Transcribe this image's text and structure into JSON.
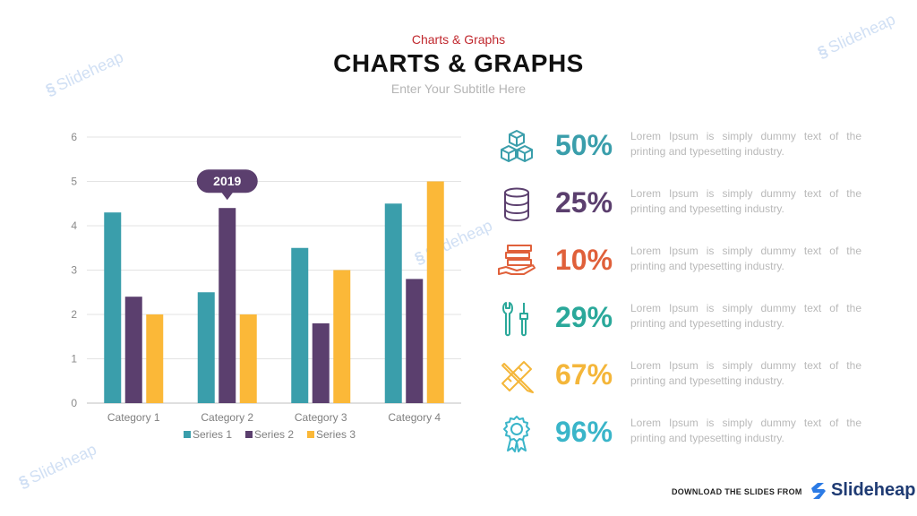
{
  "header": {
    "kicker": "Charts & Graphs",
    "title": "CHARTS & GRAPHS",
    "subtitle": "Enter Your Subtitle Here"
  },
  "chart_data": {
    "type": "bar",
    "categories": [
      "Category 1",
      "Category 2",
      "Category 3",
      "Category 4"
    ],
    "series": [
      {
        "name": "Series 1",
        "values": [
          4.3,
          2.5,
          3.5,
          4.5
        ],
        "color": "#3a9eab"
      },
      {
        "name": "Series 2",
        "values": [
          2.4,
          4.4,
          1.8,
          2.8
        ],
        "color": "#5b3f6e"
      },
      {
        "name": "Series 3",
        "values": [
          2.0,
          2.0,
          3.0,
          5.0
        ],
        "color": "#fbb838"
      }
    ],
    "ylim": [
      0,
      6
    ],
    "yticks": [
      "0",
      "1",
      "2",
      "3",
      "4",
      "5",
      "6"
    ],
    "grid": true,
    "legend": "bottom",
    "annotation": {
      "text": "2019",
      "category": "Category 2",
      "series": "Series 2"
    }
  },
  "stats": [
    {
      "value": "50%",
      "color": "#3a9eab",
      "icon": "cubes-icon",
      "text": "Lorem Ipsum is simply dummy text of the printing and typesetting industry."
    },
    {
      "value": "25%",
      "color": "#5b3f6e",
      "icon": "database-icon",
      "text": "Lorem Ipsum is simply dummy text of the printing and typesetting industry."
    },
    {
      "value": "10%",
      "color": "#e0603a",
      "icon": "hand-stack-icon",
      "text": "Lorem Ipsum is simply dummy text of the printing and typesetting industry."
    },
    {
      "value": "29%",
      "color": "#2aa89a",
      "icon": "tools-icon",
      "text": "Lorem Ipsum is simply dummy text of the printing and typesetting industry."
    },
    {
      "value": "67%",
      "color": "#f4b63a",
      "icon": "pencil-ruler-icon",
      "text": "Lorem Ipsum is simply dummy text of the printing and typesetting industry."
    },
    {
      "value": "96%",
      "color": "#3ab5c9",
      "icon": "award-icon",
      "text": "Lorem Ipsum is simply dummy text of the printing and typesetting industry."
    }
  ],
  "watermark": "Slideheap",
  "footer": {
    "download_text": "DOWNLOAD THE SLIDES FROM",
    "brand": "Slideheap"
  }
}
